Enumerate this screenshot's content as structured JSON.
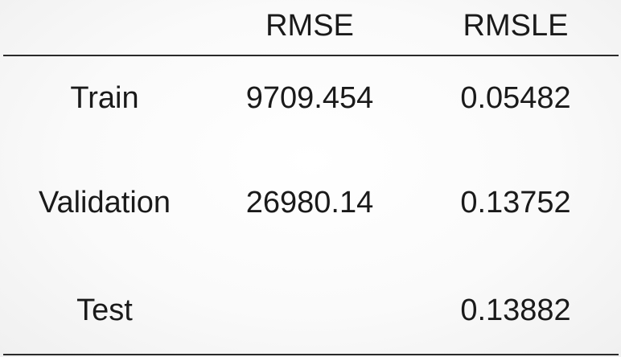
{
  "table": {
    "columns": [
      "",
      "RMSE",
      "RMSLE"
    ],
    "rows": [
      {
        "label": "Train",
        "rmse": "9709.454",
        "rmsle": "0.05482"
      },
      {
        "label": "Validation",
        "rmse": "26980.14",
        "rmsle": "0.13752"
      },
      {
        "label": "Test",
        "rmse": "",
        "rmsle": "0.13882"
      }
    ]
  }
}
